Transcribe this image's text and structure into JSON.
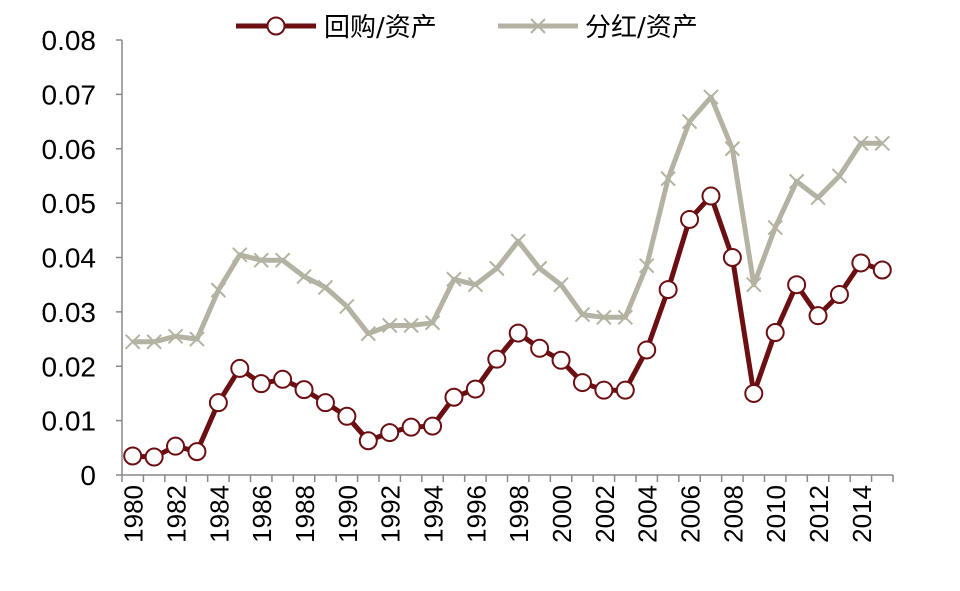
{
  "chart_data": {
    "type": "line",
    "title": "",
    "xlabel": "",
    "ylabel": "",
    "x": [
      1980,
      1981,
      1982,
      1983,
      1984,
      1985,
      1986,
      1987,
      1988,
      1989,
      1990,
      1991,
      1992,
      1993,
      1994,
      1995,
      1996,
      1997,
      1998,
      1999,
      2000,
      2001,
      2002,
      2003,
      2004,
      2005,
      2006,
      2007,
      2008,
      2009,
      2010,
      2011,
      2012,
      2013,
      2014,
      2015
    ],
    "xlim": [
      1980,
      2015
    ],
    "ylim": [
      0,
      0.08
    ],
    "y_ticks": [
      "0",
      "0.01",
      "0.02",
      "0.03",
      "0.04",
      "0.05",
      "0.06",
      "0.07",
      "0.08"
    ],
    "x_ticks": [
      "1980",
      "1982",
      "1984",
      "1986",
      "1988",
      "1990",
      "1992",
      "1994",
      "1996",
      "1998",
      "2000",
      "2002",
      "2004",
      "2006",
      "2008",
      "2010",
      "2012",
      "2014"
    ],
    "legend_position": "top",
    "grid": false,
    "series": [
      {
        "name": "回购/资产",
        "color": "#6b0f12",
        "marker": "circle",
        "values": [
          0.0035,
          0.0033,
          0.0053,
          0.0043,
          0.0133,
          0.0196,
          0.0168,
          0.0176,
          0.0157,
          0.0133,
          0.0108,
          0.0063,
          0.0078,
          0.0088,
          0.009,
          0.0143,
          0.0158,
          0.0213,
          0.0261,
          0.0233,
          0.0211,
          0.017,
          0.0156,
          0.0156,
          0.023,
          0.0341,
          0.047,
          0.0513,
          0.04,
          0.015,
          0.0262,
          0.035,
          0.0293,
          0.0332,
          0.039,
          0.0377
        ]
      },
      {
        "name": "分红/资产",
        "color": "#b4b3a3",
        "marker": "x",
        "values": [
          0.0245,
          0.0245,
          0.0255,
          0.025,
          0.034,
          0.0405,
          0.0395,
          0.0395,
          0.0365,
          0.0345,
          0.031,
          0.026,
          0.0275,
          0.0275,
          0.028,
          0.036,
          0.035,
          0.038,
          0.043,
          0.038,
          0.035,
          0.0295,
          0.029,
          0.029,
          0.0385,
          0.0545,
          0.065,
          0.0695,
          0.06,
          0.035,
          0.0455,
          0.054,
          0.051,
          0.055,
          0.061,
          0.061
        ]
      }
    ]
  }
}
